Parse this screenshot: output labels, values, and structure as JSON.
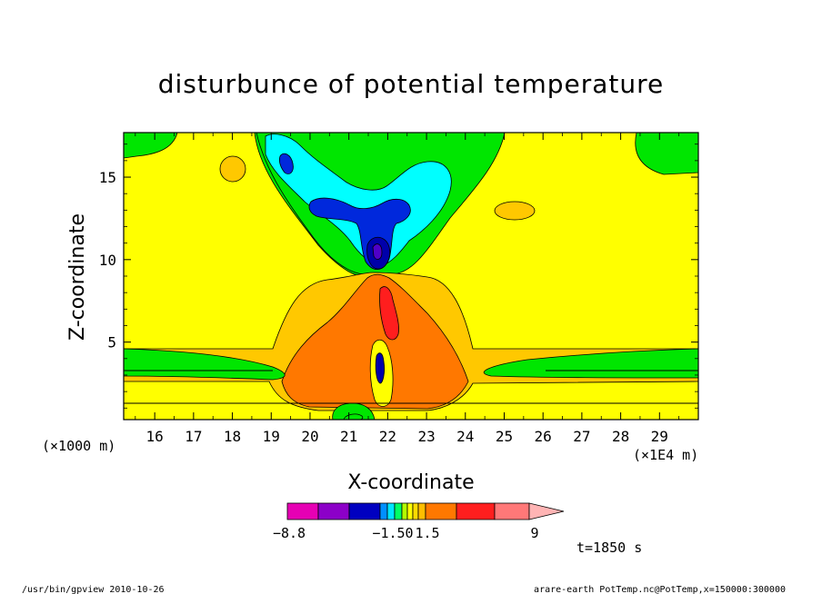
{
  "chart_data": {
    "type": "heatmap",
    "title": "disturbunce of potential temperature",
    "xlabel": "X-coordinate",
    "ylabel": "Z-coordinate",
    "x_ticks": [
      "16",
      "17",
      "18",
      "19",
      "20",
      "21",
      "22",
      "23",
      "24",
      "25",
      "26",
      "27",
      "28",
      "29"
    ],
    "y_ticks": [
      "5",
      "10",
      "15"
    ],
    "x_unit_left": "(×1000 m)",
    "x_unit_right": "(×1E4 m)",
    "xlim": [
      15.2,
      30.0
    ],
    "ylim": [
      0.3,
      17.7
    ],
    "colorbar": {
      "labels": [
        "−8.8",
        "−1.50",
        "1.5",
        "9"
      ],
      "colors": [
        "#e600b4",
        "#8c00c8",
        "#0000c0",
        "#0090ff",
        "#00e6ff",
        "#00ff64",
        "#b4ff00",
        "#ffff00",
        "#ffdc00",
        "#ffbe00",
        "#ff7800",
        "#ff1e1e",
        "#ff7878",
        "#ffb4b4"
      ]
    },
    "time_label": "t=1850 s"
  },
  "footer": {
    "left": "/usr/bin/gpview  2010-10-26",
    "right": "arare-earth_PotTemp.nc@PotTemp,x=150000:300000"
  },
  "colors": {
    "background_level": "#ffff00",
    "green_level": "#00e600",
    "cyan_level": "#00ffff",
    "blue_level": "#0028dc",
    "navy_level": "#0000aa",
    "light_orange_level": "#ffc800",
    "orange_level": "#ff7800",
    "red_level": "#ff1e1e"
  }
}
